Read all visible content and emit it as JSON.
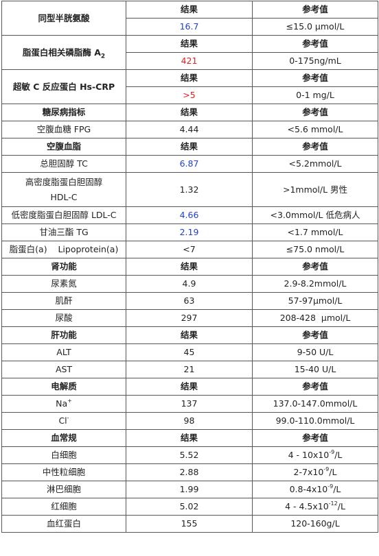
{
  "headers": {
    "result": "结果",
    "reference": "参考值"
  },
  "hcy": {
    "title": "同型半胱氨酸",
    "value": "16.7",
    "ref": "≤15.0  μmol/L"
  },
  "lppla2": {
    "title": "脂蛋白相关磷脂酶 A",
    "title_sub": "2",
    "value": "421",
    "ref": "0-175ng/mL"
  },
  "crp": {
    "title": "超敏 C 反应蛋白  Hs-CRP",
    "value": ">5",
    "ref": "0-1 mg/L"
  },
  "diabetes": {
    "title": "糖尿病指标",
    "rows": [
      {
        "name": "空腹血糖  FPG",
        "value": "4.44",
        "ref": "<5.6 mmol/L"
      }
    ]
  },
  "lipid": {
    "title": "空腹血脂",
    "rows": [
      {
        "name": "总胆固醇  TC",
        "value": "6.87",
        "ref": "<5.2mmol/L"
      },
      {
        "name": "高密度脂蛋白胆固醇 HDL-C",
        "value": "1.32",
        "ref": ">1mmol/L  男性"
      },
      {
        "name": "低密度脂蛋白胆固醇  LDL-C",
        "value": "4.66",
        "ref": "<3.0mmol/L  低危病人"
      },
      {
        "name": "甘油三酯  TG",
        "value": "2.19",
        "ref": "<1.7 mmol/L"
      },
      {
        "name": "脂蛋白(a)    Lipoprotein(a)",
        "value": "<7",
        "ref": "≤75.0 nmol/L"
      }
    ]
  },
  "kidney": {
    "title": "肾功能",
    "rows": [
      {
        "name": "尿素氮",
        "value": "4.9",
        "ref": "2.9-8.2mmol/L"
      },
      {
        "name": "肌酐",
        "value": "63",
        "ref": "57-97μmol/L"
      },
      {
        "name": "尿酸",
        "value": "297",
        "ref": "208-428  μmol/L"
      }
    ]
  },
  "liver": {
    "title": "肝功能",
    "rows": [
      {
        "name": "ALT",
        "value": "45",
        "ref": "9-50 U/L"
      },
      {
        "name": "AST",
        "value": "21",
        "ref": "15-40 U/L"
      }
    ]
  },
  "electrolyte": {
    "title": "电解质",
    "rows": [
      {
        "name": "Na",
        "sup": "+",
        "value": "137",
        "ref": "137.0-147.0mmol/L"
      },
      {
        "name": "Cl",
        "sup": "-",
        "value": "98",
        "ref": "99.0-110.0mmol/L"
      }
    ]
  },
  "blood": {
    "title": "血常规",
    "rows": [
      {
        "name": "白细胞",
        "value": "5.52",
        "ref_a": "4 - 10x10",
        "ref_sup": "-9",
        "ref_b": "/L"
      },
      {
        "name": "中性粒细胞",
        "value": "2.88",
        "ref_a": "2-7x10",
        "ref_sup": "-9",
        "ref_b": "/L"
      },
      {
        "name": "淋巴细胞",
        "value": "1.99",
        "ref_a": "0.8-4x10",
        "ref_sup": "-9",
        "ref_b": "/L"
      },
      {
        "name": "红细胞",
        "value": "5.02",
        "ref_a": "4 - 4.5x10",
        "ref_sup": "-12",
        "ref_b": "/L"
      },
      {
        "name": "血红蛋白",
        "value": "155",
        "ref_a": "120-160g/L"
      }
    ]
  },
  "colors": {
    "abnormal_blue": "#1f3fcf",
    "abnormal_red": "#e02020"
  }
}
